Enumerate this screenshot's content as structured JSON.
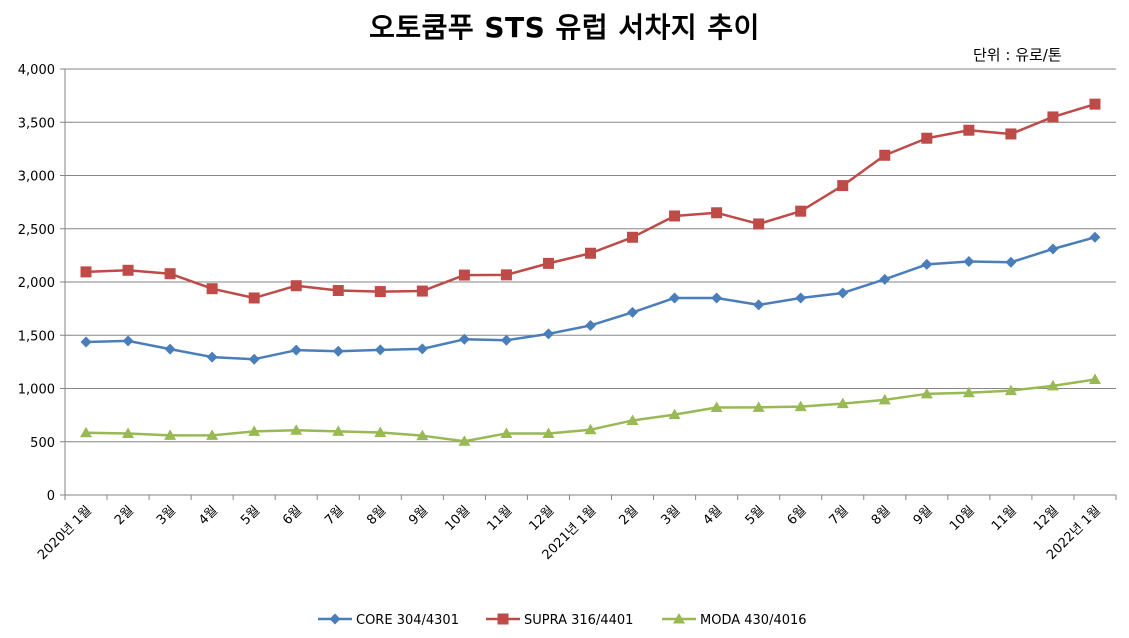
{
  "chart_data": {
    "type": "line",
    "title": "오토쿰푸 STS 유럽 서차지 추이",
    "unit_label": "단위 : 유로/톤",
    "categories": [
      "2020년 1월",
      "2월",
      "3월",
      "4월",
      "5월",
      "6월",
      "7월",
      "8월",
      "9월",
      "10월",
      "11월",
      "12월",
      "2021년 1월",
      "2월",
      "3월",
      "4월",
      "5월",
      "6월",
      "7월",
      "8월",
      "9월",
      "10월",
      "11월",
      "12월",
      "2022년 1월"
    ],
    "ylim": [
      0,
      4000
    ],
    "yticks": [
      0,
      500,
      1000,
      1500,
      2000,
      2500,
      3000,
      3500,
      4000
    ],
    "ytick_labels": [
      "0",
      "500",
      "1,000",
      "1,500",
      "2,000",
      "2,500",
      "3,000",
      "3,500",
      "4,000"
    ],
    "grid": true,
    "legend_position": "bottom",
    "series": [
      {
        "name": "CORE 304/4301",
        "color": "#4a7ebb",
        "marker": "diamond",
        "values": [
          1437,
          1447,
          1370,
          1295,
          1275,
          1360,
          1350,
          1363,
          1372,
          1462,
          1453,
          1513,
          1592,
          1715,
          1850,
          1850,
          1785,
          1850,
          1897,
          2025,
          2165,
          2193,
          2185,
          2310,
          2420
        ]
      },
      {
        "name": "SUPRA 316/4401",
        "color": "#be4b48",
        "marker": "square",
        "values": [
          2095,
          2110,
          2078,
          1937,
          1850,
          1965,
          1920,
          1910,
          1915,
          2065,
          2067,
          2175,
          2270,
          2420,
          2620,
          2650,
          2545,
          2665,
          2905,
          3190,
          3350,
          3425,
          3390,
          3550,
          3670
        ]
      },
      {
        "name": "MODA 430/4016",
        "color": "#98b954",
        "marker": "triangle",
        "values": [
          585,
          577,
          560,
          560,
          597,
          608,
          597,
          587,
          557,
          505,
          578,
          578,
          613,
          700,
          755,
          822,
          823,
          830,
          858,
          893,
          950,
          960,
          980,
          1025,
          1085
        ]
      }
    ]
  }
}
